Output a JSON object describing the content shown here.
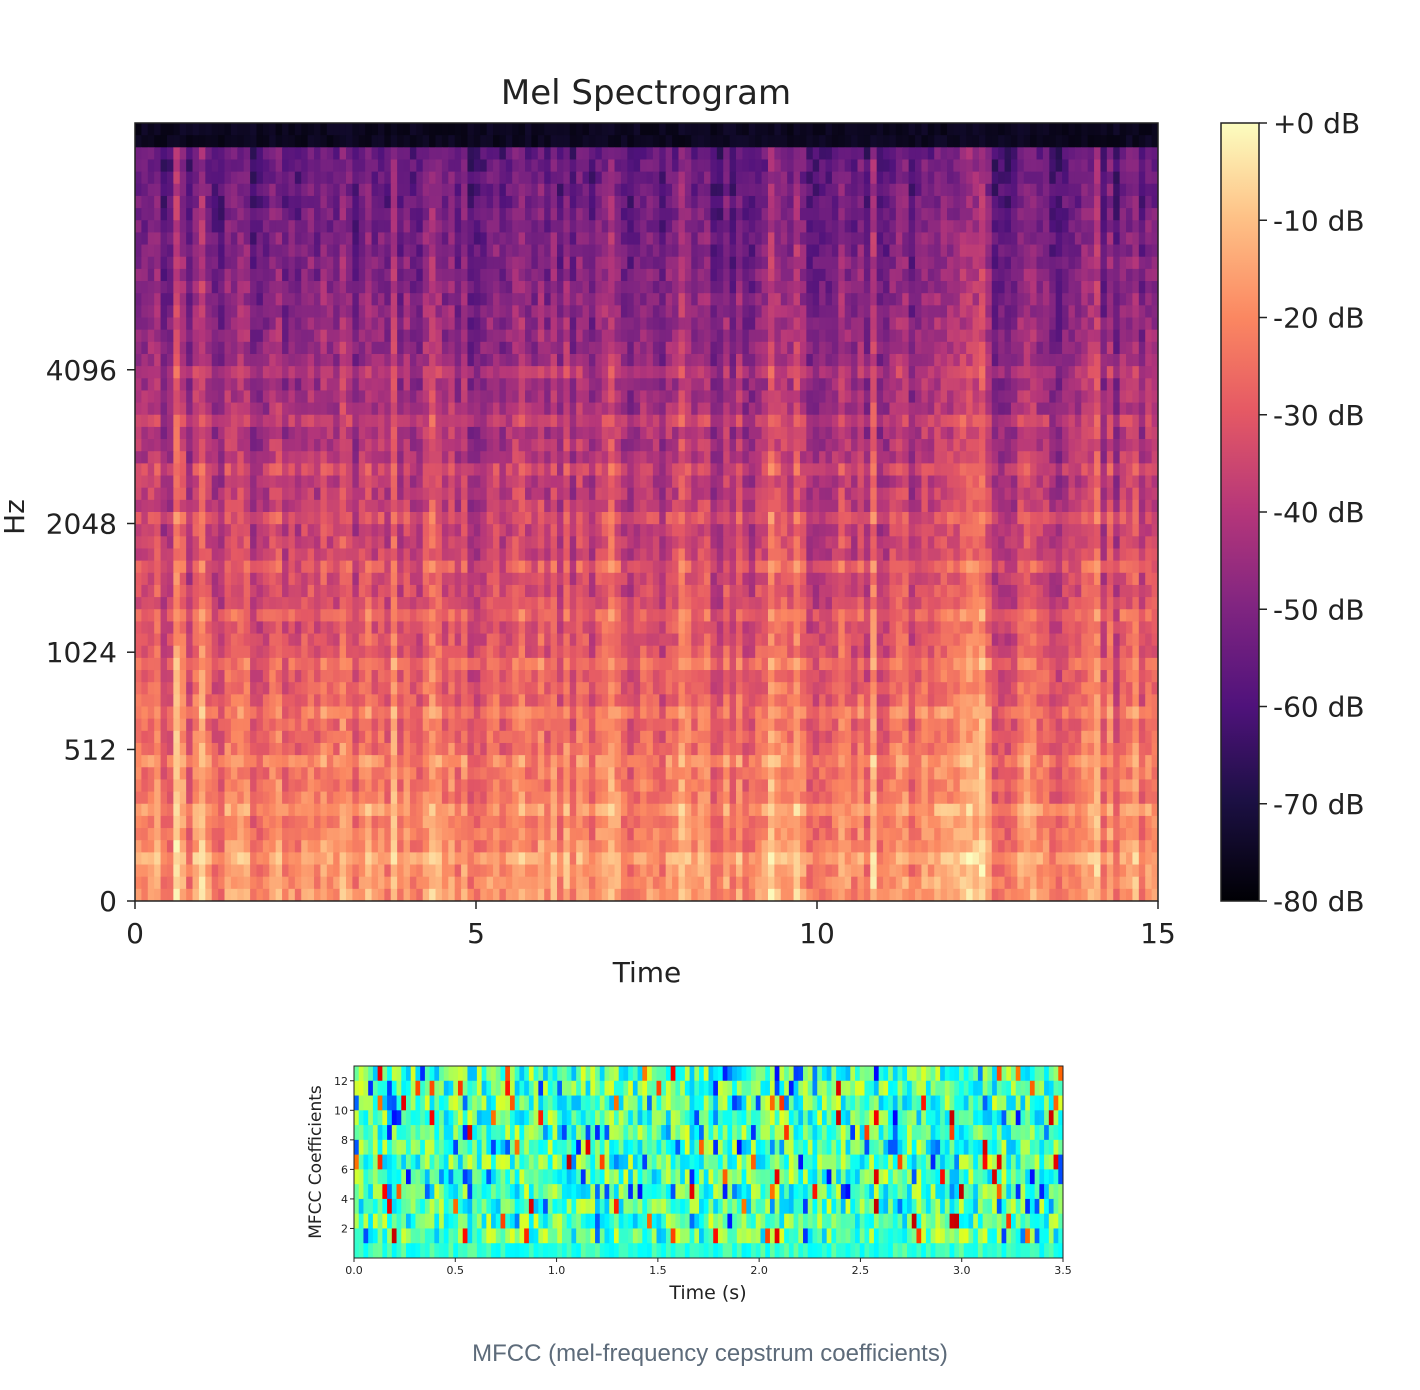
{
  "caption": "MFCC (mel-frequency cepstrum coefficients)",
  "chart_data": [
    {
      "type": "heatmap",
      "title": "Mel Spectrogram",
      "xlabel": "Time",
      "ylabel": "Hz",
      "xlim": [
        0,
        15
      ],
      "x_ticks": [
        "0",
        "5",
        "10",
        "15"
      ],
      "x_tick_values": [
        0,
        5,
        10,
        15
      ],
      "y_scale": "mel",
      "y_ticks": [
        "0",
        "512",
        "1024",
        "2048",
        "4096"
      ],
      "y_tick_values": [
        0,
        512,
        1024,
        2048,
        4096
      ],
      "colormap": "magma",
      "colorbar": {
        "range_db": [
          -80,
          0
        ],
        "ticks": [
          "+0 dB",
          "-10 dB",
          "-20 dB",
          "-30 dB",
          "-40 dB",
          "-50 dB",
          "-60 dB",
          "-70 dB",
          "-80 dB"
        ],
        "tick_values": [
          0,
          -10,
          -20,
          -30,
          -40,
          -50,
          -60,
          -70,
          -80
        ]
      },
      "grid": false
    },
    {
      "type": "heatmap",
      "title": "",
      "xlabel": "Time (s)",
      "ylabel": "MFCC Coefficients",
      "xlim": [
        0.0,
        3.5
      ],
      "x_ticks": [
        "0.0",
        "0.5",
        "1.0",
        "1.5",
        "2.0",
        "2.5",
        "3.0",
        "3.5"
      ],
      "x_tick_values": [
        0.0,
        0.5,
        1.0,
        1.5,
        2.0,
        2.5,
        3.0,
        3.5
      ],
      "ylim": [
        0,
        13
      ],
      "y_ticks": [
        "2",
        "4",
        "6",
        "8",
        "10",
        "12"
      ],
      "y_tick_values": [
        2,
        4,
        6,
        8,
        10,
        12
      ],
      "colormap": "jet",
      "grid": false
    }
  ]
}
